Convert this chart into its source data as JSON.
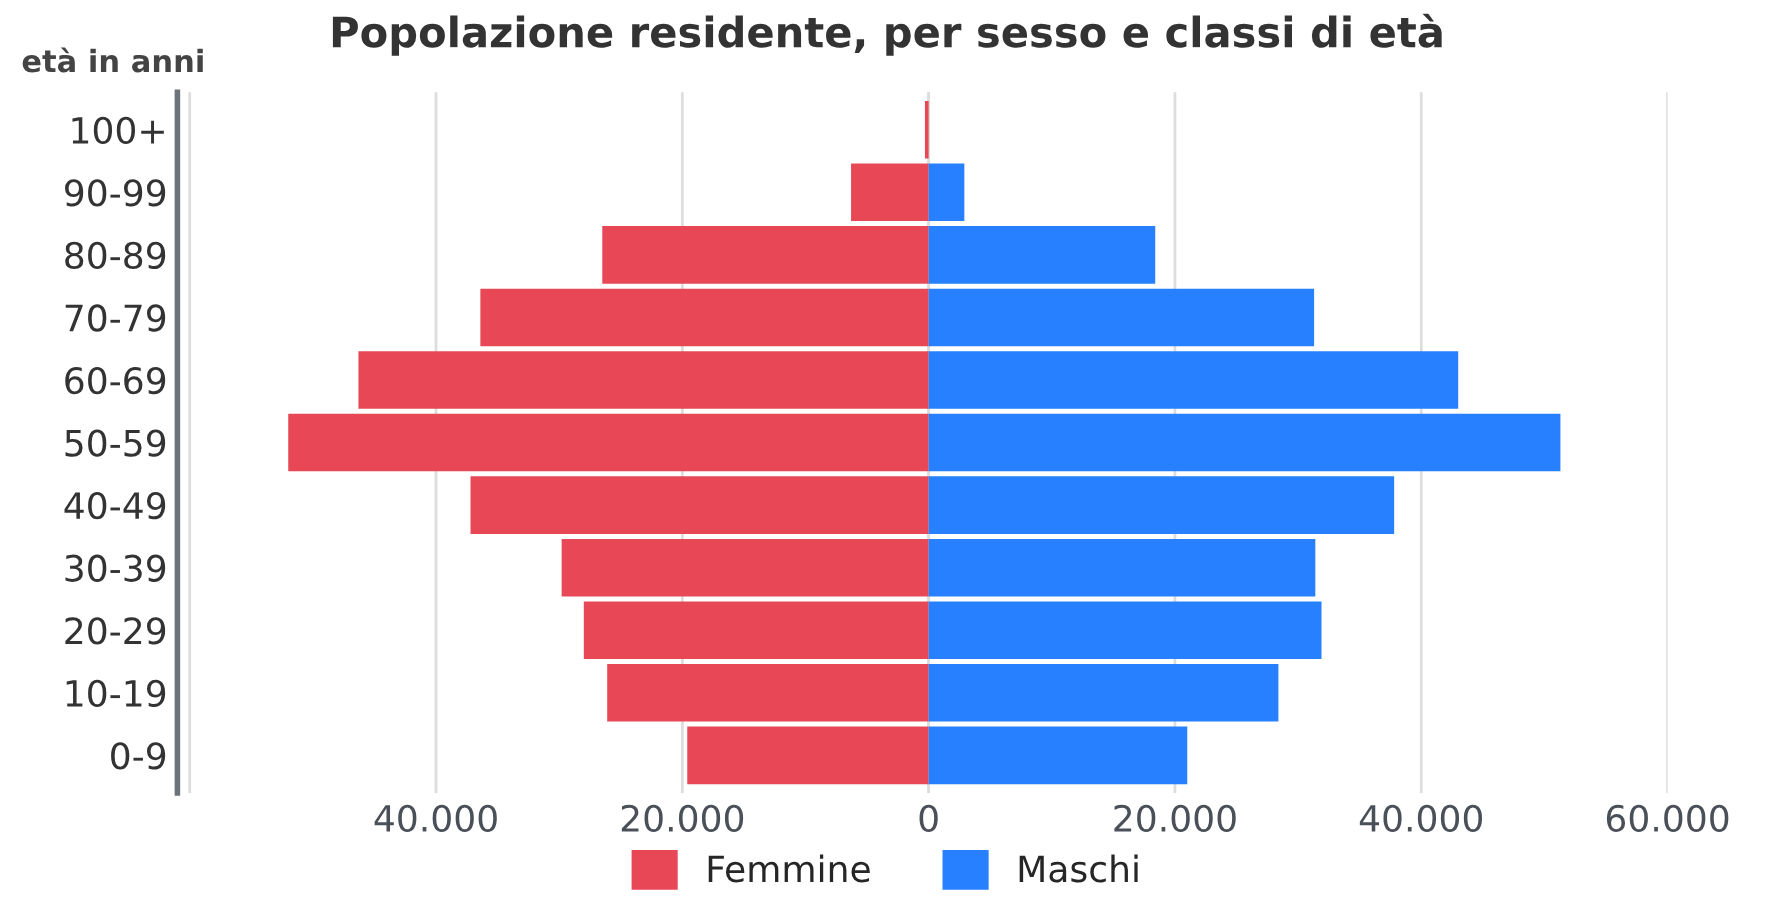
{
  "chart_data": {
    "type": "bar",
    "orientation": "horizontal",
    "title": "Popolazione residente, per sesso e classi di età",
    "ylabel": "età in anni",
    "categories": [
      "100+",
      "90-99",
      "80-89",
      "70-79",
      "60-69",
      "50-59",
      "40-49",
      "30-39",
      "20-29",
      "10-19",
      "0-9"
    ],
    "series": [
      {
        "name": "Femmine",
        "color": "#e84855",
        "values": [
          -300,
          -6300,
          -26500,
          -36400,
          -46300,
          -52000,
          -37200,
          -29800,
          -28000,
          -26100,
          -19600
        ]
      },
      {
        "name": "Maschi",
        "color": "#2680ff",
        "values": [
          null,
          2900,
          18400,
          31300,
          43000,
          51300,
          37800,
          31400,
          31900,
          28400,
          21000
        ]
      }
    ],
    "xlim": [
      -61000,
      60000
    ],
    "xticks": [
      {
        "value": -60000,
        "label": null
      },
      {
        "value": -40000,
        "label": "40.000"
      },
      {
        "value": -20000,
        "label": "20.000"
      },
      0,
      {
        "value": 20000,
        "label": "20.000"
      },
      {
        "value": 40000,
        "label": "40.000"
      },
      {
        "value": 60000,
        "label": "60.000"
      }
    ],
    "stacked": true,
    "grid": "x",
    "legend": "bottom"
  }
}
